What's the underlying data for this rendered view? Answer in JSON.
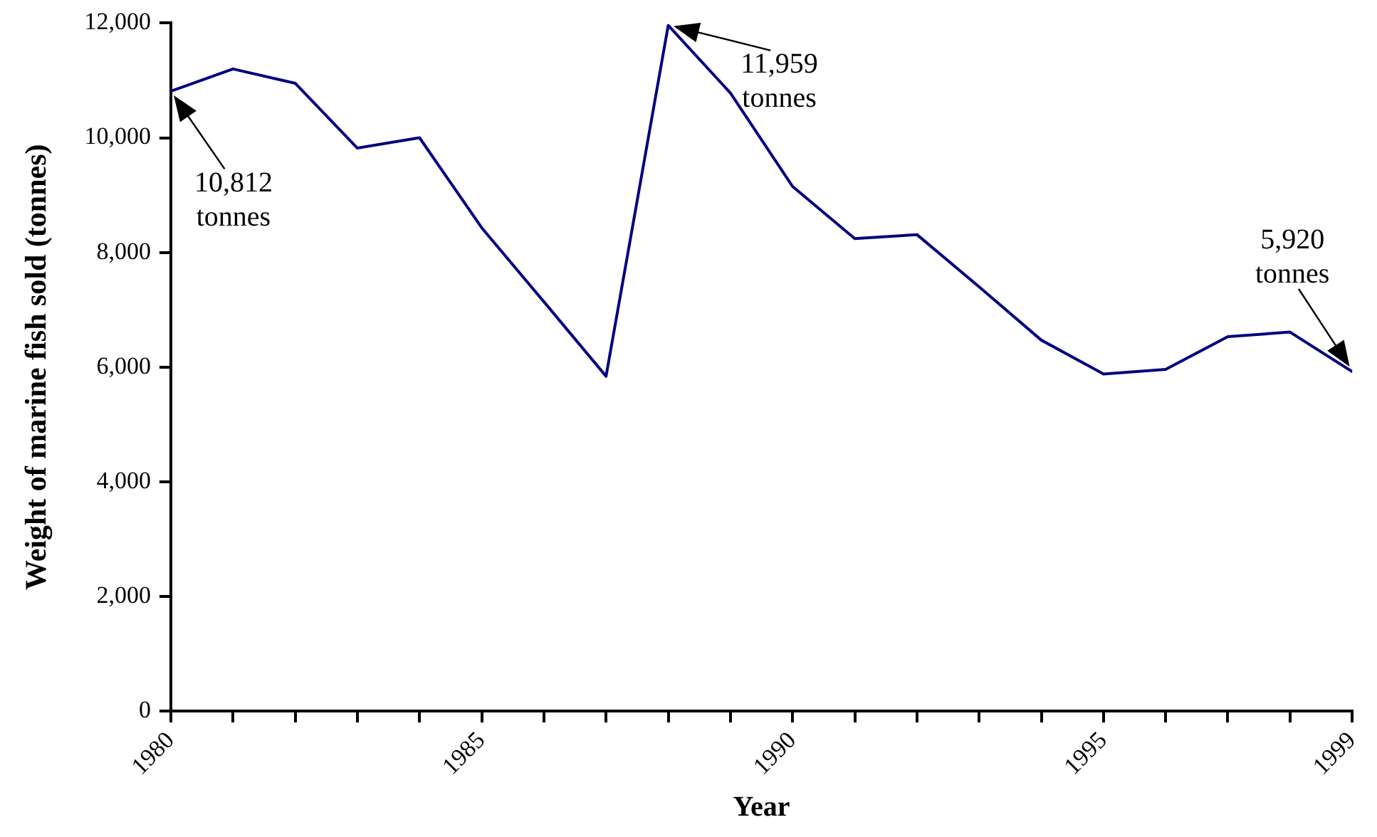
{
  "chart_data": {
    "type": "line",
    "xlabel": "Year",
    "ylabel": "Weight of marine fish sold (tonnes)",
    "x": [
      1980,
      1981,
      1982,
      1983,
      1984,
      1985,
      1986,
      1987,
      1988,
      1989,
      1990,
      1991,
      1992,
      1993,
      1994,
      1995,
      1996,
      1997,
      1998,
      1999
    ],
    "series": [
      {
        "color": "#000080",
        "values": [
          10812,
          11200,
          10950,
          9820,
          10000,
          8430,
          7140,
          5840,
          11959,
          10780,
          9150,
          8240,
          8310,
          7400,
          6470,
          5880,
          5960,
          6530,
          6610,
          5920
        ]
      }
    ],
    "xlim": [
      1980,
      1999
    ],
    "xticks": [
      1980,
      {
        "value": 1981,
        "label": null
      },
      {
        "value": 1982,
        "label": null
      },
      {
        "value": 1983,
        "label": null
      },
      {
        "value": 1984,
        "label": null
      },
      1985,
      {
        "value": 1986,
        "label": null
      },
      {
        "value": 1987,
        "label": null
      },
      {
        "value": 1988,
        "label": null
      },
      {
        "value": 1989,
        "label": null
      },
      1990,
      {
        "value": 1991,
        "label": null
      },
      {
        "value": 1992,
        "label": null
      },
      {
        "value": 1993,
        "label": null
      },
      {
        "value": 1994,
        "label": null
      },
      1995,
      {
        "value": 1996,
        "label": null
      },
      {
        "value": 1997,
        "label": null
      },
      {
        "value": 1998,
        "label": null
      },
      1999
    ],
    "ylim": [
      0,
      12000
    ],
    "yticks": [
      0,
      {
        "value": 2000,
        "label": "2,000"
      },
      {
        "value": 4000,
        "label": "4,000"
      },
      {
        "value": 6000,
        "label": "6,000"
      },
      {
        "value": 8000,
        "label": "8,000"
      },
      {
        "value": 10000,
        "label": "10,000"
      },
      {
        "value": 12000,
        "label": "12,000"
      }
    ],
    "annotations": [
      {
        "text": "10,812 tonnes",
        "x": 1980,
        "y": 10812
      },
      {
        "text": "11,959 tonnes",
        "x": 1988,
        "y": 11959
      },
      {
        "text": "5,920 tonnes",
        "x": 1999,
        "y": 5920
      }
    ],
    "grid": false,
    "legend": false,
    "marker": "none",
    "line_style": "solid"
  }
}
